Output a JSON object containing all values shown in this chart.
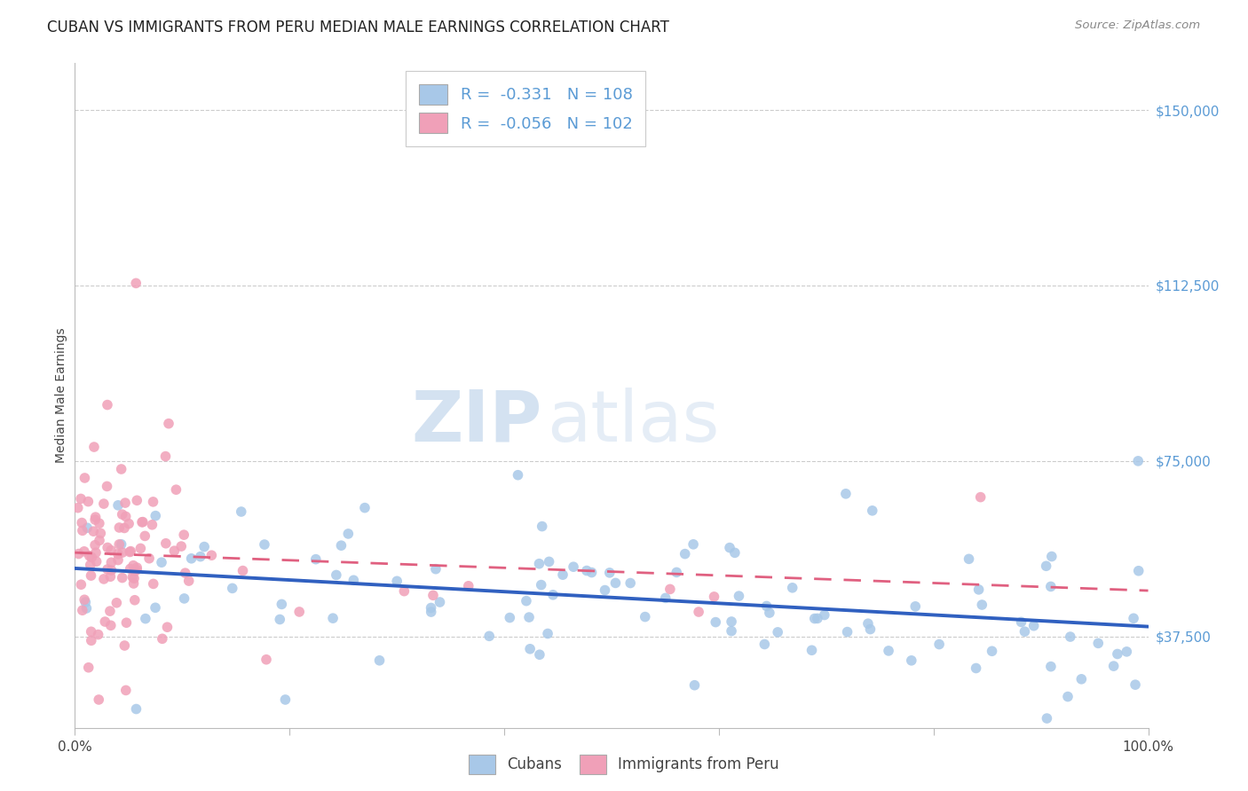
{
  "title": "CUBAN VS IMMIGRANTS FROM PERU MEDIAN MALE EARNINGS CORRELATION CHART",
  "source": "Source: ZipAtlas.com",
  "ylabel": "Median Male Earnings",
  "yticks": [
    37500,
    75000,
    112500,
    150000
  ],
  "ytick_labels": [
    "$37,500",
    "$75,000",
    "$112,500",
    "$150,000"
  ],
  "watermark_zip": "ZIP",
  "watermark_atlas": "atlas",
  "blue_color": "#5b9bd5",
  "blue_scatter_color": "#a8c8e8",
  "pink_scatter_color": "#f0a0b8",
  "blue_line_color": "#3060c0",
  "pink_line_color": "#e06080",
  "R_blue": -0.331,
  "N_blue": 108,
  "R_pink": -0.056,
  "N_pink": 102,
  "xmin": 0.0,
  "xmax": 1.0,
  "ymin": 18000,
  "ymax": 160000,
  "title_fontsize": 12,
  "axis_label_fontsize": 10,
  "tick_fontsize": 11,
  "legend_fontsize": 13
}
